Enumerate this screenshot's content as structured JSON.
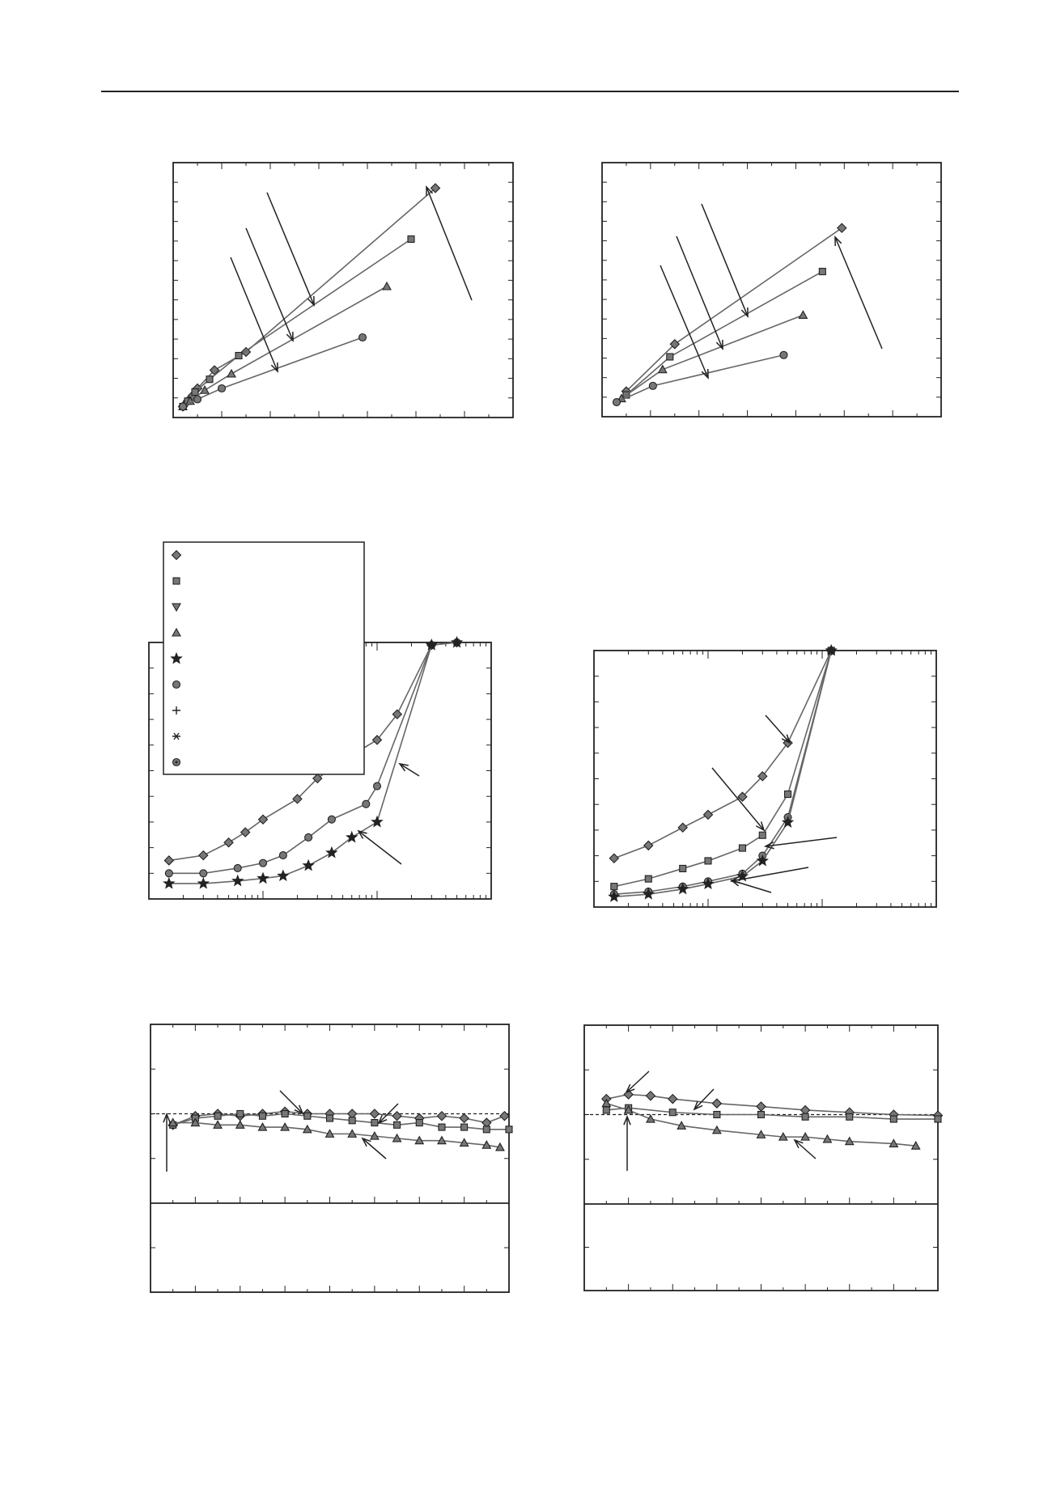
{
  "page": {
    "background": "#ffffff",
    "ink": "#222222",
    "series_line_color": "#666666",
    "marker_fill": "#777777"
  },
  "chart_data": [
    {
      "id": "top-left",
      "type": "line",
      "xlim": [
        0,
        7
      ],
      "ylim": [
        0,
        7
      ],
      "series": [
        {
          "marker": "diamond",
          "x": [
            0.2,
            0.3,
            0.4,
            0.5,
            0.85,
            1.5,
            5.4
          ],
          "y": [
            0.3,
            0.45,
            0.6,
            0.8,
            1.3,
            1.8,
            6.3
          ]
        },
        {
          "marker": "square",
          "x": [
            0.2,
            0.3,
            0.45,
            0.75,
            1.35,
            4.9
          ],
          "y": [
            0.3,
            0.45,
            0.7,
            1.05,
            1.7,
            4.9
          ]
        },
        {
          "marker": "triangle",
          "x": [
            0.2,
            0.35,
            0.65,
            1.2,
            4.4
          ],
          "y": [
            0.3,
            0.45,
            0.75,
            1.2,
            3.6
          ]
        },
        {
          "marker": "circle",
          "x": [
            0.2,
            0.5,
            1.0,
            3.9
          ],
          "y": [
            0.3,
            0.5,
            0.8,
            2.2
          ]
        }
      ],
      "annotation_arrows": 4,
      "grid": false
    },
    {
      "id": "top-right",
      "type": "line",
      "xlim": [
        0,
        7
      ],
      "ylim": [
        0,
        7
      ],
      "series": [
        {
          "marker": "diamond",
          "x": [
            0.5,
            1.5,
            4.95
          ],
          "y": [
            0.7,
            2.0,
            5.2
          ]
        },
        {
          "marker": "square",
          "x": [
            0.5,
            1.4,
            4.55
          ],
          "y": [
            0.6,
            1.65,
            4.0
          ]
        },
        {
          "marker": "triangle",
          "x": [
            0.4,
            1.25,
            4.15
          ],
          "y": [
            0.5,
            1.3,
            2.8
          ]
        },
        {
          "marker": "circle",
          "x": [
            0.3,
            1.05,
            3.75
          ],
          "y": [
            0.4,
            0.85,
            1.7
          ]
        }
      ],
      "annotation_arrows": 4,
      "grid": false
    },
    {
      "id": "middle-left",
      "type": "line",
      "x_scale": "log",
      "xlim": [
        0.001,
        1
      ],
      "ylim": [
        0,
        1
      ],
      "legend": {
        "placement": "top-left",
        "markers": [
          "diamond",
          "square",
          "triangle-down",
          "triangle",
          "star",
          "circle",
          "plus",
          "asterisk",
          "circle-dot"
        ]
      },
      "series": [
        {
          "marker": "diamond",
          "x": [
            0.0015,
            0.003,
            0.005,
            0.007,
            0.01,
            0.02,
            0.03,
            0.05,
            0.1,
            0.15,
            0.3,
            0.5
          ],
          "y": [
            0.15,
            0.17,
            0.22,
            0.26,
            0.31,
            0.39,
            0.47,
            0.54,
            0.62,
            0.72,
            0.99,
            1.0
          ]
        },
        {
          "marker": "circle",
          "x": [
            0.0015,
            0.003,
            0.006,
            0.01,
            0.015,
            0.025,
            0.04,
            0.08,
            0.1,
            0.3,
            0.5
          ],
          "y": [
            0.1,
            0.1,
            0.12,
            0.14,
            0.17,
            0.24,
            0.31,
            0.37,
            0.44,
            0.99,
            1.0
          ]
        },
        {
          "marker": "star",
          "x": [
            0.0015,
            0.003,
            0.006,
            0.01,
            0.015,
            0.025,
            0.04,
            0.06,
            0.1,
            0.3,
            0.5
          ],
          "y": [
            0.06,
            0.06,
            0.07,
            0.08,
            0.09,
            0.13,
            0.18,
            0.24,
            0.3,
            0.99,
            1.0
          ]
        }
      ],
      "annotation_arrows": 2,
      "grid": false
    },
    {
      "id": "middle-right",
      "type": "line",
      "x_scale": "log",
      "xlim": [
        0.001,
        1
      ],
      "ylim": [
        0,
        1
      ],
      "series": [
        {
          "marker": "diamond",
          "x": [
            0.0015,
            0.003,
            0.006,
            0.01,
            0.02,
            0.03,
            0.05,
            0.12
          ],
          "y": [
            0.19,
            0.24,
            0.31,
            0.36,
            0.43,
            0.51,
            0.64,
            1.0
          ]
        },
        {
          "marker": "square",
          "x": [
            0.0015,
            0.003,
            0.006,
            0.01,
            0.02,
            0.03,
            0.05,
            0.12
          ],
          "y": [
            0.08,
            0.11,
            0.15,
            0.18,
            0.23,
            0.28,
            0.44,
            1.0
          ]
        },
        {
          "marker": "circle",
          "x": [
            0.0015,
            0.003,
            0.006,
            0.01,
            0.02,
            0.03,
            0.05,
            0.12
          ],
          "y": [
            0.05,
            0.06,
            0.08,
            0.1,
            0.13,
            0.2,
            0.35,
            1.0
          ]
        },
        {
          "marker": "star",
          "x": [
            0.0015,
            0.003,
            0.006,
            0.01,
            0.02,
            0.03,
            0.05,
            0.12
          ],
          "y": [
            0.04,
            0.05,
            0.07,
            0.09,
            0.12,
            0.18,
            0.33,
            1.0
          ]
        }
      ],
      "annotation_arrows": 5,
      "grid": false
    },
    {
      "id": "bottom-left",
      "type": "line",
      "xlim": [
        0,
        8
      ],
      "ylim": [
        -2,
        2
      ],
      "reference_line": 0,
      "series": [
        {
          "marker": "diamond",
          "x": [
            0.5,
            1,
            1.5,
            2,
            2.5,
            3,
            3.5,
            4,
            4.5,
            5,
            5.5,
            6,
            6.5,
            7,
            7.5,
            7.9
          ],
          "y": [
            -0.25,
            -0.05,
            0.0,
            -0.05,
            0.0,
            0.05,
            0.0,
            0.0,
            0.0,
            0.0,
            -0.05,
            -0.1,
            -0.05,
            -0.1,
            -0.2,
            -0.05
          ]
        },
        {
          "marker": "square",
          "x": [
            0.5,
            1,
            1.5,
            2,
            2.5,
            3,
            3.5,
            4,
            4.5,
            5,
            5.5,
            6,
            6.5,
            7,
            7.5,
            8
          ],
          "y": [
            -0.25,
            -0.1,
            -0.05,
            0.0,
            -0.05,
            0.0,
            -0.05,
            -0.1,
            -0.15,
            -0.2,
            -0.25,
            -0.2,
            -0.3,
            -0.3,
            -0.35,
            -0.35
          ]
        },
        {
          "marker": "triangle",
          "x": [
            0.5,
            1,
            1.5,
            2,
            2.5,
            3,
            3.5,
            4,
            4.5,
            5,
            5.5,
            6,
            6.5,
            7,
            7.5,
            7.8
          ],
          "y": [
            -0.2,
            -0.2,
            -0.25,
            -0.25,
            -0.3,
            -0.3,
            -0.35,
            -0.45,
            -0.45,
            -0.5,
            -0.55,
            -0.6,
            -0.6,
            -0.65,
            -0.7,
            -0.75
          ]
        }
      ],
      "annotation_arrows": 4,
      "grid": false
    },
    {
      "id": "bottom-right",
      "type": "line",
      "xlim": [
        0,
        8
      ],
      "ylim": [
        -2,
        2
      ],
      "reference_line": 0,
      "series": [
        {
          "marker": "diamond",
          "x": [
            0.5,
            1,
            1.5,
            2,
            3,
            4,
            5,
            6,
            7,
            8
          ],
          "y": [
            0.35,
            0.45,
            0.42,
            0.35,
            0.25,
            0.18,
            0.1,
            0.05,
            0.0,
            -0.02
          ]
        },
        {
          "marker": "square",
          "x": [
            0.5,
            1,
            2,
            3,
            4,
            5,
            6,
            7,
            8
          ],
          "y": [
            0.1,
            0.15,
            0.05,
            0.0,
            0.0,
            -0.05,
            -0.05,
            -0.1,
            -0.1
          ]
        },
        {
          "marker": "triangle",
          "x": [
            0.5,
            1,
            1.5,
            2.2,
            3,
            4,
            4.5,
            5,
            5.5,
            6,
            7,
            7.5
          ],
          "y": [
            0.25,
            0.1,
            -0.1,
            -0.25,
            -0.35,
            -0.45,
            -0.5,
            -0.5,
            -0.55,
            -0.6,
            -0.65,
            -0.7
          ]
        }
      ],
      "annotation_arrows": 4,
      "grid": false
    }
  ]
}
